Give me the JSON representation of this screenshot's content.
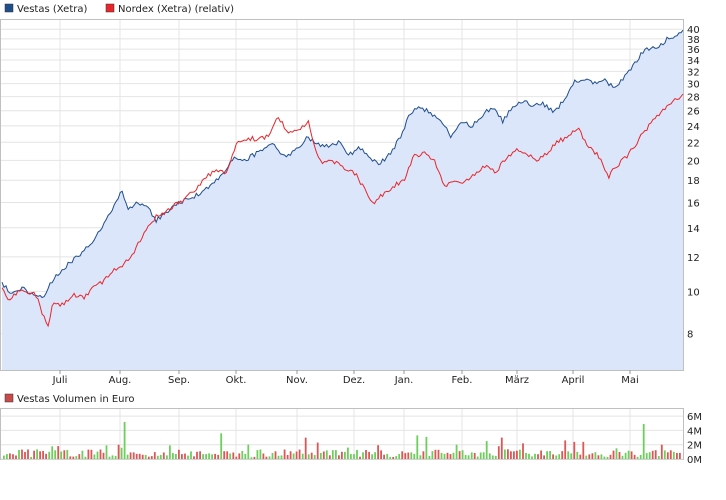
{
  "chart_data": [
    {
      "type": "line",
      "yscale": "log",
      "legend": [
        {
          "label": "Vestas (Xetra)",
          "color": "#1f4e8c"
        },
        {
          "label": "Nordex (Xetra) (relativ)",
          "color": "#e8262b"
        }
      ],
      "months": [
        "Juli",
        "Aug.",
        "Sep.",
        "Okt.",
        "Nov.",
        "Dez.",
        "Jan.",
        "Feb.",
        "März",
        "April",
        "Mai"
      ],
      "y_ticks": [
        8,
        10,
        12,
        14,
        16,
        18,
        20,
        22,
        24,
        26,
        28,
        30,
        32,
        34,
        36,
        38,
        40
      ],
      "ylim": [
        6.6,
        42
      ],
      "grid": true,
      "series": [
        {
          "name": "Vestas (Xetra)",
          "color": "#1f4e8c",
          "fill": "#dbe6fa",
          "anchors": [
            [
              0,
              10.5
            ],
            [
              0.01,
              10.0
            ],
            [
              0.02,
              9.9
            ],
            [
              0.03,
              10.2
            ],
            [
              0.045,
              9.9
            ],
            [
              0.06,
              9.7
            ],
            [
              0.075,
              10.6
            ],
            [
              0.09,
              11.3
            ],
            [
              0.11,
              12.0
            ],
            [
              0.13,
              12.9
            ],
            [
              0.145,
              13.8
            ],
            [
              0.16,
              15.2
            ],
            [
              0.175,
              17.0
            ],
            [
              0.185,
              15.5
            ],
            [
              0.2,
              16.0
            ],
            [
              0.215,
              15.6
            ],
            [
              0.225,
              14.5
            ],
            [
              0.24,
              15.1
            ],
            [
              0.255,
              15.8
            ],
            [
              0.27,
              16.3
            ],
            [
              0.285,
              16.6
            ],
            [
              0.3,
              17.3
            ],
            [
              0.315,
              18.0
            ],
            [
              0.33,
              19.1
            ],
            [
              0.34,
              20.2
            ],
            [
              0.355,
              20.0
            ],
            [
              0.37,
              20.6
            ],
            [
              0.385,
              21.1
            ],
            [
              0.4,
              21.8
            ],
            [
              0.415,
              20.3
            ],
            [
              0.43,
              21.1
            ],
            [
              0.45,
              22.6
            ],
            [
              0.46,
              21.9
            ],
            [
              0.48,
              21.4
            ],
            [
              0.495,
              22.0
            ],
            [
              0.51,
              20.6
            ],
            [
              0.525,
              21.5
            ],
            [
              0.54,
              20.2
            ],
            [
              0.555,
              19.6
            ],
            [
              0.57,
              20.8
            ],
            [
              0.585,
              22.5
            ],
            [
              0.6,
              25.8
            ],
            [
              0.615,
              26.5
            ],
            [
              0.63,
              25.6
            ],
            [
              0.645,
              24.5
            ],
            [
              0.66,
              22.6
            ],
            [
              0.675,
              24.4
            ],
            [
              0.69,
              24.0
            ],
            [
              0.705,
              25.4
            ],
            [
              0.72,
              26.5
            ],
            [
              0.735,
              24.6
            ],
            [
              0.75,
              26.4
            ],
            [
              0.765,
              27.3
            ],
            [
              0.78,
              26.6
            ],
            [
              0.795,
              27.0
            ],
            [
              0.81,
              25.7
            ],
            [
              0.825,
              27.5
            ],
            [
              0.84,
              30.2
            ],
            [
              0.855,
              30.6
            ],
            [
              0.87,
              30.0
            ],
            [
              0.885,
              30.5
            ],
            [
              0.9,
              29.2
            ],
            [
              0.915,
              31.4
            ],
            [
              0.93,
              33.4
            ],
            [
              0.945,
              36.3
            ],
            [
              0.96,
              36.0
            ],
            [
              0.975,
              37.8
            ],
            [
              0.99,
              38.6
            ],
            [
              1.0,
              39.8
            ]
          ]
        },
        {
          "name": "Nordex (Xetra) (relativ)",
          "color": "#e8262b",
          "fill": "none",
          "anchors": [
            [
              0,
              10.2
            ],
            [
              0.01,
              9.6
            ],
            [
              0.02,
              9.9
            ],
            [
              0.035,
              10.0
            ],
            [
              0.05,
              9.8
            ],
            [
              0.06,
              8.8
            ],
            [
              0.068,
              8.2
            ],
            [
              0.075,
              9.5
            ],
            [
              0.09,
              9.3
            ],
            [
              0.105,
              9.8
            ],
            [
              0.12,
              9.7
            ],
            [
              0.135,
              10.2
            ],
            [
              0.15,
              10.6
            ],
            [
              0.165,
              11.2
            ],
            [
              0.18,
              11.6
            ],
            [
              0.195,
              12.4
            ],
            [
              0.21,
              13.7
            ],
            [
              0.225,
              14.8
            ],
            [
              0.24,
              15.2
            ],
            [
              0.255,
              15.8
            ],
            [
              0.27,
              16.4
            ],
            [
              0.285,
              17.2
            ],
            [
              0.3,
              18.3
            ],
            [
              0.315,
              18.9
            ],
            [
              0.33,
              18.8
            ],
            [
              0.345,
              22.0
            ],
            [
              0.36,
              22.5
            ],
            [
              0.375,
              22.4
            ],
            [
              0.39,
              22.6
            ],
            [
              0.405,
              25.3
            ],
            [
              0.42,
              23.2
            ],
            [
              0.435,
              23.3
            ],
            [
              0.45,
              24.5
            ],
            [
              0.46,
              21.0
            ],
            [
              0.47,
              19.8
            ],
            [
              0.485,
              20.0
            ],
            [
              0.5,
              19.3
            ],
            [
              0.515,
              19.0
            ],
            [
              0.53,
              17.4
            ],
            [
              0.545,
              16.0
            ],
            [
              0.56,
              16.7
            ],
            [
              0.575,
              17.5
            ],
            [
              0.59,
              18.0
            ],
            [
              0.605,
              20.5
            ],
            [
              0.62,
              20.8
            ],
            [
              0.635,
              20.0
            ],
            [
              0.65,
              17.5
            ],
            [
              0.665,
              18.0
            ],
            [
              0.68,
              17.8
            ],
            [
              0.695,
              18.6
            ],
            [
              0.71,
              19.4
            ],
            [
              0.725,
              18.8
            ],
            [
              0.74,
              20.2
            ],
            [
              0.755,
              21.3
            ],
            [
              0.77,
              20.6
            ],
            [
              0.785,
              20.0
            ],
            [
              0.8,
              20.6
            ],
            [
              0.815,
              22.0
            ],
            [
              0.83,
              22.6
            ],
            [
              0.845,
              23.7
            ],
            [
              0.86,
              21.6
            ],
            [
              0.875,
              20.6
            ],
            [
              0.89,
              18.3
            ],
            [
              0.905,
              19.6
            ],
            [
              0.92,
              20.6
            ],
            [
              0.935,
              22.3
            ],
            [
              0.95,
              24.0
            ],
            [
              0.965,
              25.6
            ],
            [
              0.98,
              27.0
            ],
            [
              1.0,
              28.4
            ]
          ]
        }
      ]
    },
    {
      "type": "bar",
      "legend": [
        {
          "label": "Vestas Volumen in Euro",
          "color": "#c84b4b"
        }
      ],
      "y_ticks": [
        "0M",
        "2M",
        "4M",
        "6M"
      ],
      "ylim": [
        0,
        7
      ],
      "up_color": "#6ccf5c",
      "down_color": "#df5555",
      "grid": true
    }
  ]
}
